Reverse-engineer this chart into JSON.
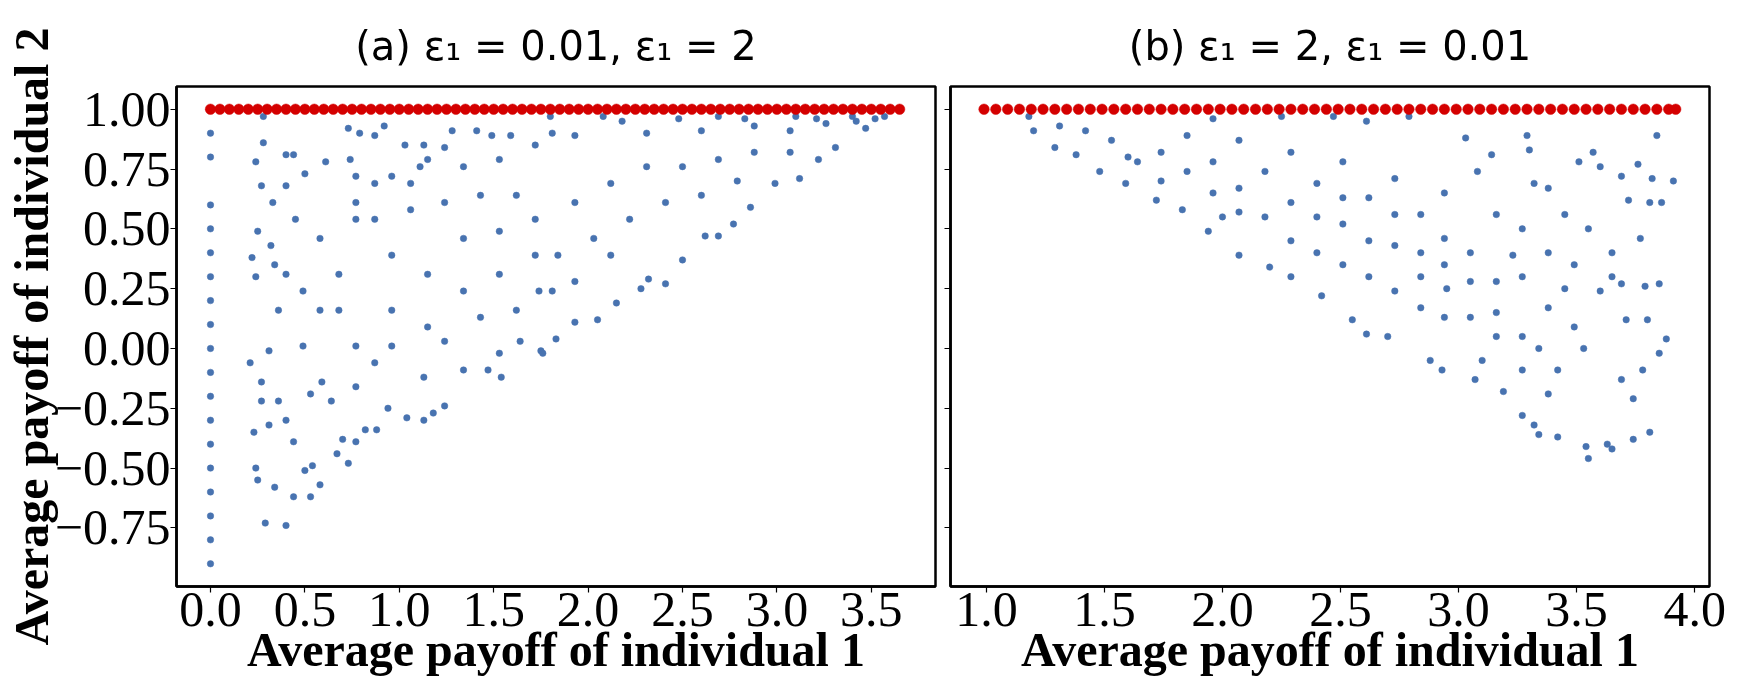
{
  "chart_data": [
    {
      "type": "scatter",
      "title": "(a) ε₁ = 0.01, ε₁ = 2",
      "xlabel": "Average payoff of individual 1",
      "ylabel": "Average payoff of individual 2",
      "xlim": [
        -0.18,
        3.84
      ],
      "ylim": [
        -0.995,
        1.095
      ],
      "xticks": [
        {
          "value": 0,
          "label": "0.0"
        },
        {
          "value": 0.5,
          "label": "0.5"
        },
        {
          "value": 1,
          "label": "1.0"
        },
        {
          "value": 1.5,
          "label": "1.5"
        },
        {
          "value": 2,
          "label": "2.0"
        },
        {
          "value": 2.5,
          "label": "2.5"
        },
        {
          "value": 3,
          "label": "3.0"
        },
        {
          "value": 3.5,
          "label": "3.5"
        }
      ],
      "yticks": [
        {
          "value": -0.75,
          "label": "−0.75"
        },
        {
          "value": -0.5,
          "label": "−0.50"
        },
        {
          "value": -0.25,
          "label": "−0.25"
        },
        {
          "value": 0,
          "label": "0.00"
        },
        {
          "value": 0.25,
          "label": "0.25"
        },
        {
          "value": 0.5,
          "label": "0.50"
        },
        {
          "value": 0.75,
          "label": "0.75"
        },
        {
          "value": 1,
          "label": "1.00"
        }
      ],
      "marker": "circle",
      "series": [
        {
          "color": "#4873b0",
          "x": [
            0,
            0,
            0,
            0,
            0,
            0,
            0,
            0,
            0,
            0,
            0,
            0,
            0,
            0,
            0,
            0,
            0,
            0,
            0.28,
            0.28,
            0.24,
            0.27,
            0.22,
            0.24,
            0.25,
            0.21,
            0.23,
            0.24,
            0.25,
            0.29,
            0.4,
            0.34,
            0.44,
            0.53,
            0.54,
            0.58,
            0.5,
            0.44,
            0.31,
            0.73,
            0.67,
            0.7,
            0.77,
            0.88,
            0.82,
            1.04,
            1.13,
            1.24,
            1.18,
            1.34,
            1.54,
            1.75,
            0.4,
            0.44,
            0.5,
            0.61,
            0.73,
            0.92,
            0.87,
            1.28,
            1.41,
            0.4,
            0.33,
            0.34,
            0.31,
            0.27,
            0.27,
            0.36,
            0.4,
            0.53,
            0.59,
            0.64,
            0.77,
            0.94,
            1.13,
            1.24,
            0.58,
            0.49,
            0.68,
            0.77,
            0.87,
            0.96,
            1.06,
            1.15,
            0.96,
            0.87,
            0.79,
            1.03,
            1.13,
            1.24,
            1.49,
            1.59,
            1.72,
            1.81,
            0.74,
            0.77,
            0.96,
            1.11,
            1.34,
            1.53,
            0.77,
            0.87,
            1.06,
            1.24,
            1.43,
            1.62,
            1.34,
            1.53,
            1.72,
            1.15,
            1.34,
            1.53,
            1.72,
            0.96,
            1.15,
            1.43,
            1.62,
            1.81,
            0.77,
            0.58,
            0.4,
            0.49,
            0.68,
            0.45,
            0.32,
            0.36,
            1.53,
            1.64,
            1.47,
            1.8,
            2.08,
            2.48,
            2.69,
            2.83,
            3.1,
            3.21,
            3.4,
            3.52,
            3.57,
            3.47,
            3.42,
            3.31,
            3.22,
            3.12,
            2.99,
            2.86,
            2.77,
            2.69,
            2.62,
            2.5,
            2.41,
            2.32,
            2.28,
            2.15,
            2.05,
            1.93,
            1.83,
            1.76,
            2.31,
            2.6,
            2.88,
            3.07,
            3.26,
            1.93,
            2.18,
            1.93,
            2.12,
            2.31,
            2.5,
            2.69,
            2.88,
            1.84,
            2.03,
            2.22,
            2.41,
            2.6,
            2.79,
            3.07,
            1.74,
            1.93,
            2.12
          ],
          "values": [
            0.9,
            0.8,
            0.6,
            0.5,
            0.4,
            0.3,
            0.2,
            0.1,
            0,
            -0.1,
            -0.2,
            -0.3,
            -0.4,
            -0.5,
            -0.6,
            -0.7,
            -0.8,
            -0.9,
            0.97,
            0.86,
            0.78,
            0.68,
            0.38,
            0.3,
            0.49,
            -0.06,
            -0.35,
            -0.5,
            -0.55,
            -0.73,
            -0.74,
            -0.58,
            -0.62,
            -0.62,
            -0.49,
            -0.57,
            -0.51,
            -0.39,
            -0.32,
            -0.48,
            -0.44,
            -0.38,
            -0.39,
            -0.34,
            -0.34,
            -0.29,
            -0.3,
            -0.24,
            -0.27,
            -0.09,
            -0.12,
            -0.01,
            0.81,
            0.81,
            0.73,
            0.78,
            0.92,
            0.93,
            0.89,
            0.91,
            0.91,
            0.68,
            0.61,
            0.35,
            -0.01,
            -0.14,
            -0.22,
            -0.22,
            -0.3,
            -0.19,
            -0.14,
            -0.22,
            -0.16,
            -0.25,
            -0.12,
            0.03,
            0.46,
            0.24,
            0.16,
            0.54,
            0.69,
            0.39,
            0.69,
            0.79,
            0.01,
            -0.06,
            0.9,
            0.85,
            0.85,
            0.84,
            0.89,
            0.89,
            0.85,
            0.9,
            0.79,
            0.72,
            0.72,
            0.76,
            0.76,
            0.79,
            0.61,
            0.54,
            0.58,
            0.61,
            0.64,
            0.64,
            0.46,
            0.49,
            0.54,
            0.31,
            0.24,
            0.31,
            0.39,
            0.16,
            0.09,
            0.13,
            0.16,
            0.24,
            0.01,
            0.16,
            0.31,
            0.01,
            0.31,
            0.54,
            0.43,
            0.16,
            -0.02,
            0.03,
            -0.09,
            0.97,
            0.97,
            0.96,
            0.97,
            0.96,
            0.97,
            0.96,
            0.97,
            0.96,
            0.97,
            0.92,
            0.95,
            0.84,
            0.79,
            0.71,
            0.69,
            0.59,
            0.52,
            0.47,
            0.47,
            0.37,
            0.27,
            0.29,
            0.25,
            0.19,
            0.12,
            0.11,
            0.04,
            -0.02,
            0.9,
            0.91,
            0.93,
            0.91,
            0.94,
            0.89,
            0.95,
            0.61,
            0.69,
            0.76,
            0.76,
            0.79,
            0.82,
            0.39,
            0.46,
            0.54,
            0.61,
            0.64,
            0.7,
            0.82,
            0.24,
            0.28,
            0.39
          ]
        },
        {
          "color": "#d40000",
          "x": [
            0,
            0.05,
            0.1,
            0.15,
            0.2,
            0.25,
            0.3,
            0.35,
            0.4,
            0.45,
            0.5,
            0.55,
            0.6,
            0.65,
            0.7,
            0.75,
            0.8,
            0.85,
            0.9,
            0.95,
            1,
            1.05,
            1.1,
            1.15,
            1.2,
            1.25,
            1.3,
            1.35,
            1.4,
            1.45,
            1.5,
            1.55,
            1.6,
            1.65,
            1.7,
            1.75,
            1.8,
            1.85,
            1.9,
            1.95,
            2,
            2.05,
            2.1,
            2.15,
            2.2,
            2.25,
            2.3,
            2.35,
            2.4,
            2.45,
            2.5,
            2.55,
            2.6,
            2.65,
            2.7,
            2.75,
            2.8,
            2.85,
            2.9,
            2.95,
            3,
            3.05,
            3.1,
            3.15,
            3.2,
            3.25,
            3.3,
            3.35,
            3.4,
            3.45,
            3.5,
            3.55,
            3.6,
            3.65
          ],
          "values": [
            1,
            1,
            1,
            1,
            1,
            1,
            1,
            1,
            1,
            1,
            1,
            1,
            1,
            1,
            1,
            1,
            1,
            1,
            1,
            1,
            1,
            1,
            1,
            1,
            1,
            1,
            1,
            1,
            1,
            1,
            1,
            1,
            1,
            1,
            1,
            1,
            1,
            1,
            1,
            1,
            1,
            1,
            1,
            1,
            1,
            1,
            1,
            1,
            1,
            1,
            1,
            1,
            1,
            1,
            1,
            1,
            1,
            1,
            1,
            1,
            1,
            1,
            1,
            1,
            1,
            1,
            1,
            1,
            1,
            1,
            1,
            1,
            1,
            1
          ]
        }
      ]
    },
    {
      "type": "scatter",
      "title": "(b) ε₁ = 2, ε₁ = 0.01",
      "xlabel": "Average payoff of individual 1",
      "xlim": [
        0.848,
        4.063
      ],
      "ylim": [
        -0.995,
        1.095
      ],
      "tick_labels": "x",
      "xticks": [
        {
          "value": 1,
          "label": "1.0"
        },
        {
          "value": 1.5,
          "label": "1.5"
        },
        {
          "value": 2,
          "label": "2.0"
        },
        {
          "value": 2.5,
          "label": "2.5"
        },
        {
          "value": 3,
          "label": "3.0"
        },
        {
          "value": 3.5,
          "label": "3.5"
        },
        {
          "value": 4,
          "label": "4.0"
        }
      ],
      "yticks": [
        -0.75,
        -0.5,
        -0.25,
        0,
        0.25,
        0.5,
        0.75,
        1
      ],
      "marker": "circle",
      "series": [
        {
          "color": "#4873b0",
          "x": [
            1.18,
            1.2,
            1.29,
            1.38,
            1.48,
            1.59,
            1.72,
            1.83,
            1.94,
            2.07,
            2.2,
            2.29,
            2.42,
            2.55,
            2.61,
            2.7,
            2.88,
            2.93,
            3.07,
            3.19,
            3.27,
            3.32,
            3.34,
            3.42,
            3.54,
            3.55,
            3.63,
            3.65,
            3.74,
            3.81,
            3.84,
            3.91,
            3.86,
            3.81,
            3.82,
            3.76,
            3.69,
            3.72,
            3.77,
            3.85,
            3.79,
            3.8,
            3.88,
            3.85,
            3.78,
            3.74,
            3.69,
            3.71,
            3.65,
            3.69,
            3.65,
            3.6,
            3.57,
            3.51,
            3.29,
            3.3,
            3.14,
            3.03,
            2.79,
            2.61,
            2.47,
            2.25,
            1.96,
            1.64,
            1.85,
            2.07,
            2.29,
            2.51,
            2.73,
            2.94,
            3.16,
            3.38,
            3.49,
            3.53,
            3.42,
            3.38,
            3.27,
            3.16,
            3.05,
            2.84,
            2.73,
            2.51,
            2.29,
            2.07,
            1.85,
            2.07,
            2.29,
            2.51,
            2.73,
            2.94,
            3.16,
            3.38,
            3.45,
            3.55,
            3.6,
            3.49,
            3.34,
            2.94,
            3.05,
            2.84,
            2.62,
            2.4,
            2.18,
            1.96,
            1.74,
            1.53,
            1.42,
            1.31,
            3.23,
            2.94,
            2.73,
            2.51,
            3.08,
            3.32,
            2.4,
            2.62,
            2.62,
            2.84,
            3.05,
            3.27,
            3.16,
            2.95,
            2.18,
            1.96,
            1.74,
            2.4,
            2.84,
            3.27,
            3.38,
            3.45,
            3.27,
            3.1,
            1.6,
            2.0
          ],
          "values": [
            0.97,
            0.91,
            0.84,
            0.81,
            0.74,
            0.69,
            0.62,
            0.58,
            0.49,
            0.39,
            0.34,
            0.3,
            0.22,
            0.12,
            0.06,
            0.05,
            -0.05,
            -0.09,
            -0.13,
            -0.18,
            -0.28,
            -0.32,
            -0.36,
            -0.37,
            -0.41,
            -0.46,
            -0.4,
            -0.42,
            -0.38,
            -0.35,
            0.89,
            0.7,
            0.61,
            0.61,
            0.71,
            0.77,
            0.72,
            0.62,
            0.46,
            0.27,
            0.26,
            0.12,
            0.04,
            -0.02,
            -0.09,
            -0.21,
            -0.13,
            0.12,
            0.3,
            0.27,
            0.4,
            0.76,
            0.82,
            0.78,
            0.89,
            0.83,
            0.81,
            0.88,
            0.97,
            0.95,
            0.97,
            0.97,
            0.96,
            0.78,
            0.74,
            0.67,
            0.61,
            0.52,
            0.43,
            0.35,
            0.28,
            0.17,
            0.35,
            0,
            -0.09,
            -0.19,
            -0.09,
            0.05,
            0.13,
            0.17,
            0.24,
            0.35,
            0.45,
            0.57,
            0.89,
            0.87,
            0.82,
            0.78,
            0.71,
            0.65,
            0.56,
            0.67,
            0.56,
            0.5,
            0.24,
            0.09,
            0,
            0.13,
            0.28,
            0.56,
            0.63,
            0.69,
            0.74,
            0.78,
            0.82,
            0.87,
            0.91,
            0.93,
            0.39,
            0.46,
            0.56,
            0.63,
            0.74,
            0.69,
            0.4,
            0.3,
            0.45,
            0.4,
            0.4,
            0.3,
            0.15,
            0.25,
            0.55,
            0.65,
            0.7,
            0.55,
            0.3,
            0.5,
            0.4,
            0.25,
            0.05,
            -0.05,
            0.8,
            0.55
          ]
        },
        {
          "color": "#d40000",
          "x": [
            0.99,
            1.04,
            1.09,
            1.14,
            1.19,
            1.24,
            1.29,
            1.34,
            1.39,
            1.44,
            1.49,
            1.54,
            1.59,
            1.64,
            1.69,
            1.74,
            1.79,
            1.84,
            1.89,
            1.94,
            1.99,
            2.04,
            2.09,
            2.14,
            2.19,
            2.24,
            2.29,
            2.34,
            2.39,
            2.44,
            2.49,
            2.54,
            2.59,
            2.64,
            2.69,
            2.74,
            2.79,
            2.84,
            2.89,
            2.94,
            2.99,
            3.04,
            3.09,
            3.14,
            3.19,
            3.24,
            3.29,
            3.34,
            3.39,
            3.44,
            3.49,
            3.54,
            3.59,
            3.64,
            3.69,
            3.74,
            3.79,
            3.84,
            3.89,
            3.92
          ],
          "values": [
            1,
            1,
            1,
            1,
            1,
            1,
            1,
            1,
            1,
            1,
            1,
            1,
            1,
            1,
            1,
            1,
            1,
            1,
            1,
            1,
            1,
            1,
            1,
            1,
            1,
            1,
            1,
            1,
            1,
            1,
            1,
            1,
            1,
            1,
            1,
            1,
            1,
            1,
            1,
            1,
            1,
            1,
            1,
            1,
            1,
            1,
            1,
            1,
            1,
            1,
            1,
            1,
            1,
            1,
            1,
            1,
            1,
            1,
            1,
            1
          ]
        }
      ]
    }
  ]
}
